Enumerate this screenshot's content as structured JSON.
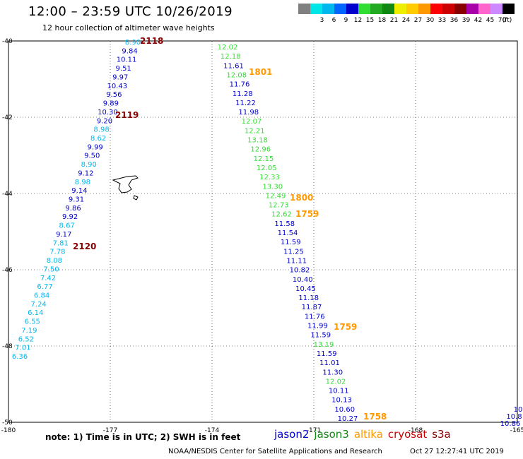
{
  "header": {
    "title": "12:00 – 23:59 UTC 10/26/2019",
    "subtitle": "12 hour collection of altimeter wave heights"
  },
  "colorbar": {
    "unit": "(ft)",
    "swatches": [
      {
        "color": "#808080",
        "label": ""
      },
      {
        "color": "#00e5e5",
        "label": "3"
      },
      {
        "color": "#00b8ee",
        "label": "6"
      },
      {
        "color": "#0066ff",
        "label": "9"
      },
      {
        "color": "#0000cc",
        "label": "12"
      },
      {
        "color": "#33dd33",
        "label": "15"
      },
      {
        "color": "#22aa22",
        "label": "18"
      },
      {
        "color": "#118811",
        "label": "21"
      },
      {
        "color": "#eeee00",
        "label": "24"
      },
      {
        "color": "#ffcc00",
        "label": "27"
      },
      {
        "color": "#ff9900",
        "label": "30"
      },
      {
        "color": "#ff0000",
        "label": "33"
      },
      {
        "color": "#cc0000",
        "label": "36"
      },
      {
        "color": "#880000",
        "label": "39"
      },
      {
        "color": "#aa00aa",
        "label": "42"
      },
      {
        "color": "#ff66cc",
        "label": "45"
      },
      {
        "color": "#cc88ff",
        "label": "70"
      },
      {
        "color": "#000000",
        "label": ""
      }
    ]
  },
  "axes": {
    "lat_labels": [
      "-40",
      "-42",
      "-44",
      "-46",
      "-48",
      "-50"
    ],
    "lon_labels": [
      "-180",
      "-177",
      "-174",
      "-171",
      "-168",
      "-165"
    ]
  },
  "tracks": [
    {
      "points": [
        {
          "v": "8.90",
          "c": "#00b8ee"
        },
        {
          "v": "9.84",
          "c": "#0000cc"
        },
        {
          "v": "10.11",
          "c": "#0000cc"
        },
        {
          "v": "9.51",
          "c": "#0000cc"
        },
        {
          "v": "9.97",
          "c": "#0000cc"
        },
        {
          "v": "10.43",
          "c": "#0000cc"
        },
        {
          "v": "9.56",
          "c": "#0000cc"
        },
        {
          "v": "9.89",
          "c": "#0000cc"
        },
        {
          "v": "10.30",
          "c": "#0000cc"
        },
        {
          "v": "9.20",
          "c": "#0000cc"
        },
        {
          "v": "8.98",
          "c": "#00b8ee"
        },
        {
          "v": "8.62",
          "c": "#00b8ee"
        },
        {
          "v": "9.99",
          "c": "#0000cc"
        },
        {
          "v": "9.50",
          "c": "#0000cc"
        },
        {
          "v": "8.90",
          "c": "#00b8ee"
        },
        {
          "v": "9.12",
          "c": "#0000cc"
        },
        {
          "v": "8.98",
          "c": "#00b8ee"
        },
        {
          "v": "9.14",
          "c": "#0000cc"
        },
        {
          "v": "9.31",
          "c": "#0000cc"
        },
        {
          "v": "9.86",
          "c": "#0000cc"
        },
        {
          "v": "9.92",
          "c": "#0000cc"
        },
        {
          "v": "8.67",
          "c": "#00b8ee"
        },
        {
          "v": "9.17",
          "c": "#0000cc"
        },
        {
          "v": "7.81",
          "c": "#00b8ee"
        },
        {
          "v": "7.78",
          "c": "#00b8ee"
        },
        {
          "v": "8.08",
          "c": "#00b8ee"
        },
        {
          "v": "7.50",
          "c": "#00b8ee"
        },
        {
          "v": "7.42",
          "c": "#00b8ee"
        },
        {
          "v": "6.77",
          "c": "#00b8ee"
        },
        {
          "v": "6.84",
          "c": "#00b8ee"
        },
        {
          "v": "7.24",
          "c": "#00b8ee"
        },
        {
          "v": "6.14",
          "c": "#00b8ee"
        },
        {
          "v": "6.55",
          "c": "#00b8ee"
        },
        {
          "v": "7.19",
          "c": "#00b8ee"
        },
        {
          "v": "6.52",
          "c": "#00b8ee"
        },
        {
          "v": "7.01",
          "c": "#00b8ee"
        },
        {
          "v": "6.36",
          "c": "#00b8ee"
        }
      ]
    },
    {
      "points": [
        {
          "v": "12.02",
          "c": "#33dd33"
        },
        {
          "v": "12.18",
          "c": "#33dd33"
        },
        {
          "v": "11.61",
          "c": "#0000cc"
        },
        {
          "v": "12.08",
          "c": "#33dd33"
        },
        {
          "v": "11.76",
          "c": "#0000cc"
        },
        {
          "v": "11.28",
          "c": "#0000cc"
        },
        {
          "v": "11.22",
          "c": "#0000cc"
        },
        {
          "v": "11.98",
          "c": "#0000cc"
        },
        {
          "v": "12.07",
          "c": "#33dd33"
        },
        {
          "v": "12.21",
          "c": "#33dd33"
        },
        {
          "v": "13.18",
          "c": "#33dd33"
        },
        {
          "v": "12.96",
          "c": "#33dd33"
        },
        {
          "v": "12.15",
          "c": "#33dd33"
        },
        {
          "v": "12.05",
          "c": "#33dd33"
        },
        {
          "v": "12.33",
          "c": "#33dd33"
        },
        {
          "v": "13.30",
          "c": "#33dd33"
        },
        {
          "v": "12.49",
          "c": "#33dd33"
        },
        {
          "v": "12.73",
          "c": "#33dd33"
        },
        {
          "v": "12.62",
          "c": "#33dd33"
        },
        {
          "v": "11.58",
          "c": "#0000cc"
        },
        {
          "v": "11.54",
          "c": "#0000cc"
        },
        {
          "v": "11.59",
          "c": "#0000cc"
        },
        {
          "v": "11.25",
          "c": "#0000cc"
        },
        {
          "v": "11.11",
          "c": "#0000cc"
        },
        {
          "v": "10.82",
          "c": "#0000cc"
        },
        {
          "v": "10.40",
          "c": "#0000cc"
        },
        {
          "v": "10.45",
          "c": "#0000cc"
        },
        {
          "v": "11.18",
          "c": "#0000cc"
        },
        {
          "v": "11.87",
          "c": "#0000cc"
        },
        {
          "v": "11.76",
          "c": "#0000cc"
        },
        {
          "v": "11.99",
          "c": "#0000cc"
        },
        {
          "v": "11.59",
          "c": "#0000cc"
        },
        {
          "v": "13.19",
          "c": "#33dd33"
        },
        {
          "v": "11.59",
          "c": "#0000cc"
        },
        {
          "v": "11.01",
          "c": "#0000cc"
        },
        {
          "v": "11.30",
          "c": "#0000cc"
        },
        {
          "v": "12.02",
          "c": "#33dd33"
        },
        {
          "v": "10.11",
          "c": "#0000cc"
        },
        {
          "v": "10.13",
          "c": "#0000cc"
        },
        {
          "v": "10.60",
          "c": "#0000cc"
        },
        {
          "v": "10.27",
          "c": "#0000cc"
        }
      ]
    },
    {
      "points": [
        {
          "v": "10",
          "c": "#0000cc"
        },
        {
          "v": "10.8",
          "c": "#0000cc"
        },
        {
          "v": "10.86",
          "c": "#0000cc"
        }
      ]
    }
  ],
  "time_labels": [
    {
      "v": "2118",
      "c": "#880000"
    },
    {
      "v": "2119",
      "c": "#880000"
    },
    {
      "v": "2120",
      "c": "#880000"
    },
    {
      "v": "1801",
      "c": "#ff9900"
    },
    {
      "v": "1800",
      "c": "#ff9900"
    },
    {
      "v": "1759",
      "c": "#ff9900"
    },
    {
      "v": "1759",
      "c": "#ff9900"
    },
    {
      "v": "1758",
      "c": "#ff9900"
    }
  ],
  "footer": {
    "note": "note:  1) Time is in UTC;  2) SWH is in feet",
    "satellites": [
      {
        "name": "jason2",
        "color": "#0000cc"
      },
      {
        "name": "jason3",
        "color": "#118811"
      },
      {
        "name": "altika",
        "color": "#ff9900"
      },
      {
        "name": "cryosat",
        "color": "#cc0000"
      },
      {
        "name": "s3a",
        "color": "#880000"
      }
    ],
    "credit": "NOAA/NESDIS Center for Satellite Applications and Research",
    "timestamp": "Oct 27 12:27:41 UTC 2019"
  }
}
